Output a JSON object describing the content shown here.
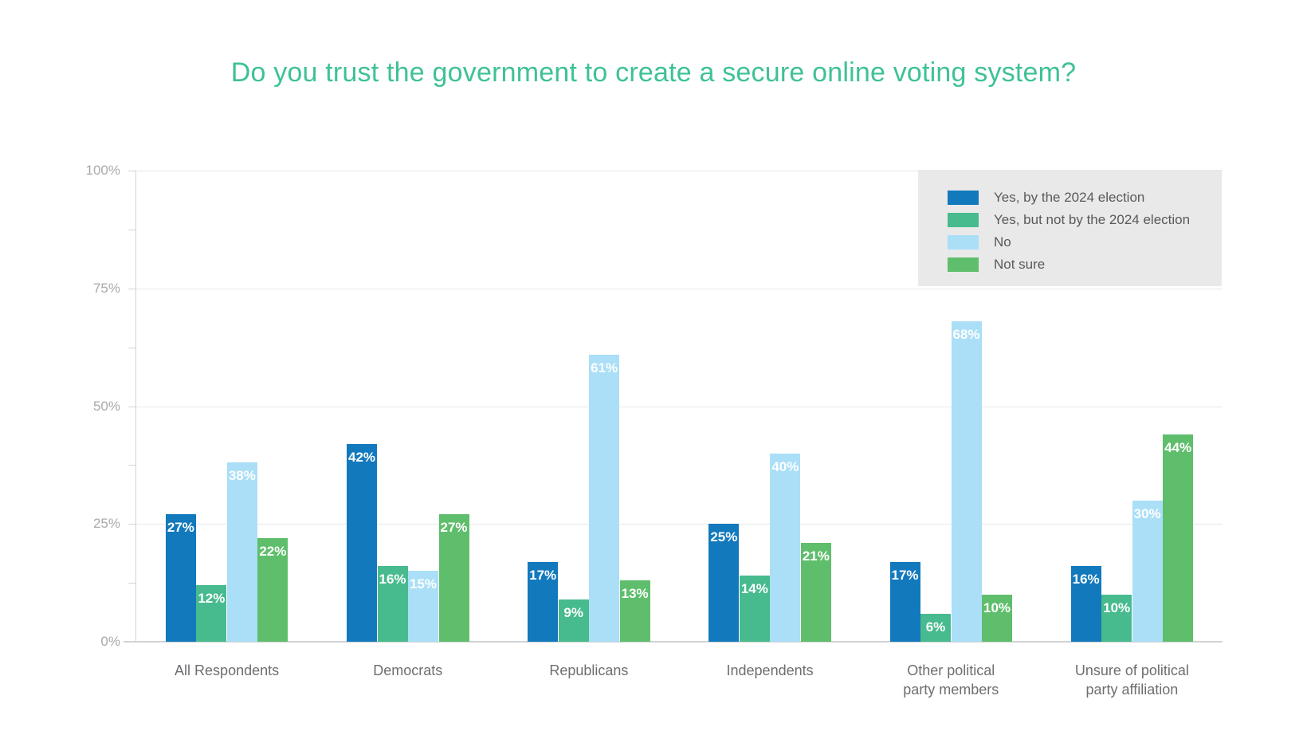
{
  "chart_data": {
    "type": "bar",
    "title": "Do you trust the government to create a secure online voting system?",
    "xlabel": "",
    "ylabel": "",
    "ylim": [
      0,
      100
    ],
    "y_ticks": [
      {
        "value": 0,
        "label": "0%"
      },
      {
        "value": 25,
        "label": "25%"
      },
      {
        "value": 50,
        "label": "50%"
      },
      {
        "value": 75,
        "label": "75%"
      },
      {
        "value": 100,
        "label": "100%"
      }
    ],
    "minor_tick_step": 12.5,
    "grid": "horizontal",
    "legend_position": "top-right",
    "value_label_suffix": "%",
    "categories": [
      "All Respondents",
      "Democrats",
      "Republicans",
      "Independents",
      "Other political\nparty members",
      "Unsure of political\nparty affiliation"
    ],
    "series": [
      {
        "name": "Yes, by the 2024 election",
        "color": "#1279bd",
        "values": [
          27,
          42,
          17,
          25,
          17,
          16
        ]
      },
      {
        "name": "Yes, but not by the 2024 election",
        "color": "#47bb8e",
        "values": [
          12,
          16,
          9,
          14,
          6,
          10
        ]
      },
      {
        "name": "No",
        "color": "#aadff7",
        "values": [
          38,
          15,
          61,
          40,
          68,
          30
        ]
      },
      {
        "name": "Not sure",
        "color": "#5fbe6c",
        "values": [
          22,
          27,
          13,
          21,
          10,
          44
        ]
      }
    ]
  },
  "colors": {
    "title": "#3ec294",
    "axis_line": "#d1d3d4",
    "gridline": "#e7e8e9",
    "y_label": "#a7a9ac",
    "category_label": "#6d6e71",
    "legend_background": "#e9e9e9",
    "legend_text": "#58595b",
    "bar_value_text": "#ffffff"
  }
}
